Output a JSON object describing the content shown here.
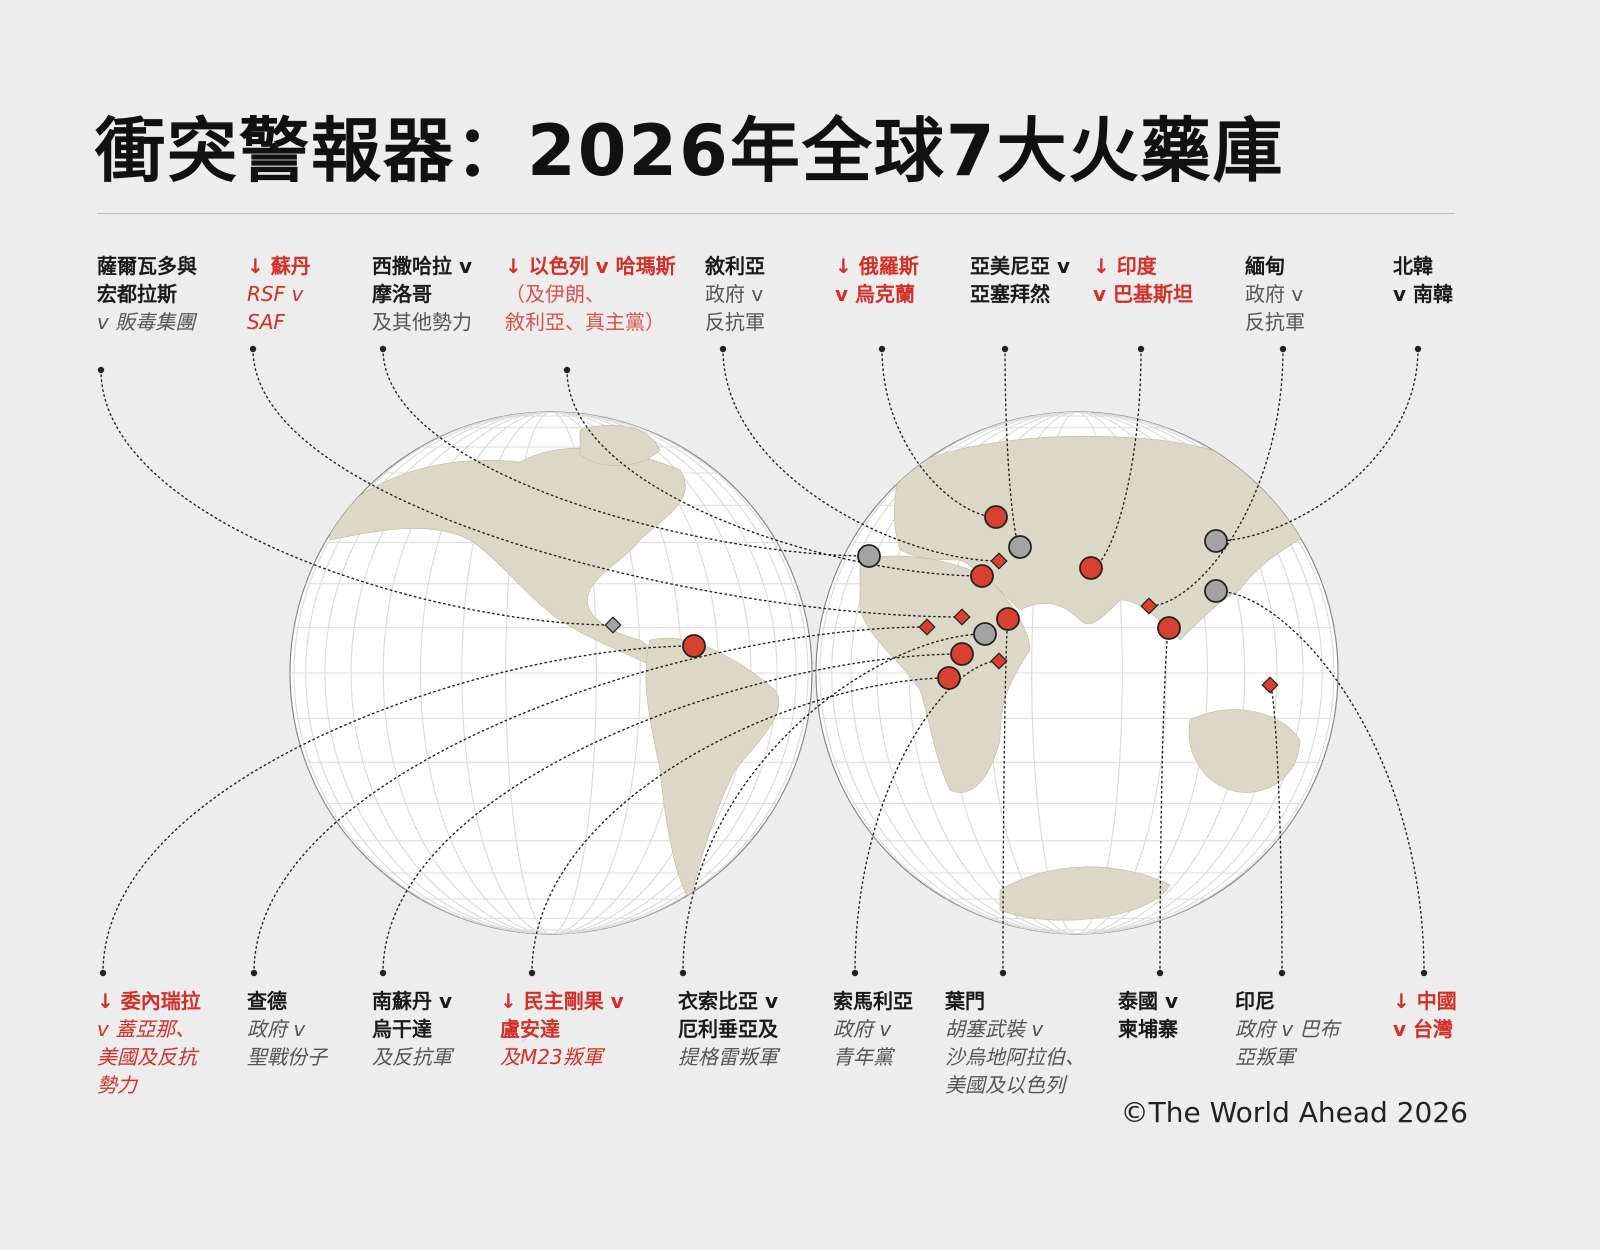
{
  "header": {
    "title": "衝突警報器：2026年全球7大火藥庫"
  },
  "labels": [
    {
      "lines": [
        "薩爾瓦多與",
        "宏都拉斯",
        "v 販毒集團"
      ]
    },
    {
      "lines": [
        "↓ 蘇丹",
        "RSF v",
        "SAF"
      ]
    },
    {
      "lines": [
        "西撒哈拉 v",
        "摩洛哥",
        "及其他勢力"
      ]
    },
    {
      "lines": [
        "↓ 以色列 v 哈瑪斯",
        "（及伊朗、",
        "敘利亞、真主黨）"
      ]
    },
    {
      "lines": [
        "敘利亞",
        "政府 v",
        "反抗軍"
      ]
    },
    {
      "lines": [
        "↓ 俄羅斯",
        "v 烏克蘭"
      ]
    },
    {
      "lines": [
        "亞美尼亞 v",
        "亞塞拜然"
      ]
    },
    {
      "lines": [
        "↓ 印度",
        "v 巴基斯坦"
      ]
    },
    {
      "lines": [
        "緬甸",
        "政府 v",
        "反抗軍"
      ]
    },
    {
      "lines": [
        "北韓",
        "v 南韓"
      ]
    },
    {
      "lines": [
        "↓ 委內瑞拉",
        "v 蓋亞那、",
        "美國及反抗",
        "勢力"
      ]
    },
    {
      "lines": [
        "查德",
        "政府 v",
        "聖戰份子"
      ]
    },
    {
      "lines": [
        "南蘇丹 v",
        "烏干達",
        "及反抗軍"
      ]
    },
    {
      "lines": [
        "↓ 民主剛果 v",
        "盧安達",
        "及M23叛軍"
      ]
    },
    {
      "lines": [
        "衣索比亞 v",
        "厄利垂亞及",
        "提格雷叛軍"
      ]
    },
    {
      "lines": [
        "索馬利亞",
        "政府 v",
        "青年黨"
      ]
    },
    {
      "lines": [
        "葉門",
        "胡塞武裝 v",
        "沙烏地阿拉伯、",
        "美國及以色列"
      ]
    },
    {
      "lines": [
        "泰國 v",
        "柬埔寨"
      ]
    },
    {
      "lines": [
        "印尼",
        "政府 v 巴布",
        "亞叛軍"
      ]
    },
    {
      "lines": [
        "↓ 中國",
        "v 台灣"
      ]
    }
  ],
  "credit": "©The World Ahead 2026"
}
